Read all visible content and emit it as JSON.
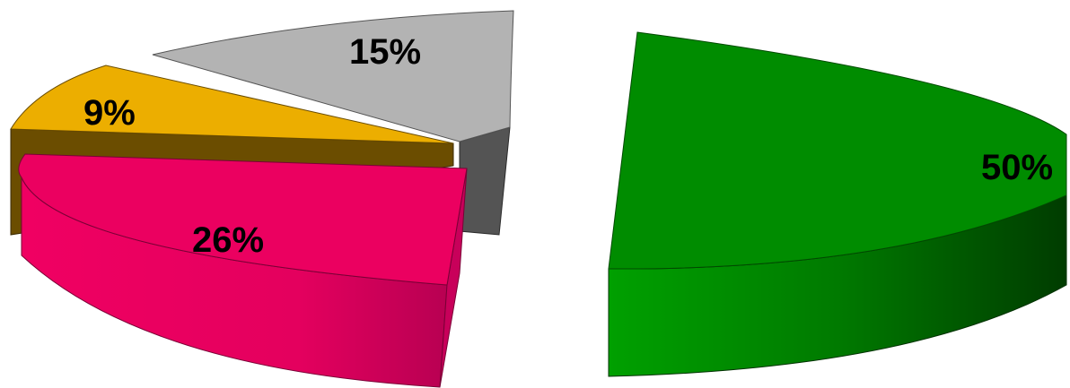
{
  "chart_data": {
    "type": "pie",
    "exploded": true,
    "three_d": true,
    "slices": [
      {
        "label": "50%",
        "value": 50,
        "color": "#008c00",
        "side_color": "#004a00"
      },
      {
        "label": "26%",
        "value": 26,
        "color": "#eb0060",
        "side_color": "#c8005a"
      },
      {
        "label": "9%",
        "value": 9,
        "color": "#ecae00",
        "side_color": "#6b4d00"
      },
      {
        "label": "15%",
        "value": 15,
        "color": "#b3b3b3",
        "side_color": "#545454"
      }
    ],
    "title": "",
    "legend": "none"
  }
}
